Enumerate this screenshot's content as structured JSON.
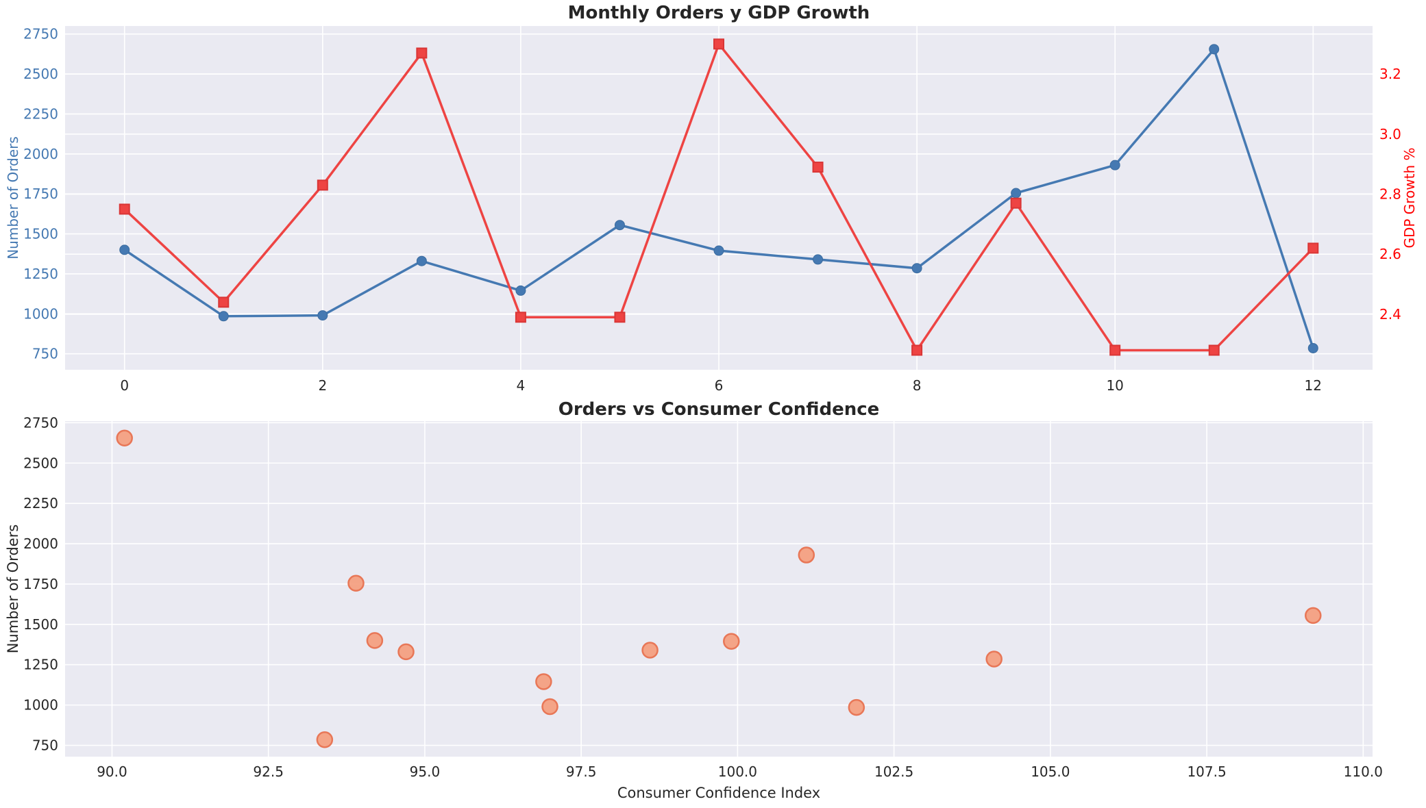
{
  "palette": {
    "figure_background": "#FFFFFF",
    "axes_background": "#EAEAF2",
    "grid": "#FFFFFF",
    "orders_blue": "#4579B2",
    "orders_blue_edge": "#3A6B9F",
    "gdp_red": "#EE4443",
    "gdp_red_edge": "#D93636",
    "gdp_tick_red": "#FF0000",
    "scatter_fill": "#F5A182",
    "scatter_edge": "#E8714F",
    "text_dark": "#262626"
  },
  "chart_data": [
    {
      "type": "line",
      "title": "Monthly Orders y GDP Growth",
      "x": [
        0,
        1,
        2,
        3,
        4,
        5,
        6,
        7,
        8,
        9,
        10,
        11,
        12
      ],
      "xlim": [
        -0.6,
        12.6
      ],
      "xtick_labels": [
        "0",
        "2",
        "4",
        "6",
        "8",
        "10",
        "12"
      ],
      "grid": true,
      "legend": "none",
      "left_axis": {
        "label": "Number of Orders",
        "color": "#4579B2",
        "tick_labels": [
          "750",
          "1000",
          "1250",
          "1500",
          "1750",
          "2000",
          "2250",
          "2500",
          "2750"
        ],
        "lim": [
          650,
          2800
        ]
      },
      "right_axis": {
        "label": "GDP Growth %",
        "color": "#FF0000",
        "tick_labels": [
          "2.4",
          "2.6",
          "2.8",
          "3.0",
          "3.2"
        ],
        "lim": [
          2.215,
          3.36
        ]
      },
      "series": [
        {
          "name": "Number of Orders",
          "yaxis": "left",
          "marker": "circle",
          "color": "#4579B2",
          "edge": "#3A6B9F",
          "values": [
            1400,
            985,
            990,
            1330,
            1145,
            1555,
            1395,
            1340,
            1285,
            1755,
            1930,
            2655,
            785
          ]
        },
        {
          "name": "GDP Growth %",
          "yaxis": "right",
          "marker": "square",
          "color": "#EE4443",
          "edge": "#D93636",
          "values": [
            2.75,
            2.44,
            2.83,
            3.27,
            2.39,
            2.39,
            3.3,
            2.89,
            2.28,
            2.77,
            2.28,
            2.28,
            2.62
          ]
        }
      ]
    },
    {
      "type": "scatter",
      "title": "Orders vs Consumer Confidence",
      "xlabel": "Consumer Confidence Index",
      "ylabel": "Number of Orders",
      "xlim": [
        89.25,
        110.15
      ],
      "ylim": [
        680,
        2760
      ],
      "grid": true,
      "xtick_labels": [
        "90.0",
        "92.5",
        "95.0",
        "97.5",
        "100.0",
        "102.5",
        "105.0",
        "107.5",
        "110.0"
      ],
      "ytick_labels": [
        "750",
        "1000",
        "1250",
        "1500",
        "1750",
        "2000",
        "2250",
        "2500",
        "2750"
      ],
      "points": [
        [
          90.2,
          2655
        ],
        [
          93.4,
          785
        ],
        [
          93.9,
          1755
        ],
        [
          94.2,
          1400
        ],
        [
          94.7,
          1330
        ],
        [
          96.9,
          1145
        ],
        [
          97.0,
          990
        ],
        [
          98.6,
          1340
        ],
        [
          99.9,
          1395
        ],
        [
          101.1,
          1930
        ],
        [
          101.9,
          985
        ],
        [
          104.1,
          1285
        ],
        [
          109.2,
          1555
        ]
      ]
    }
  ]
}
